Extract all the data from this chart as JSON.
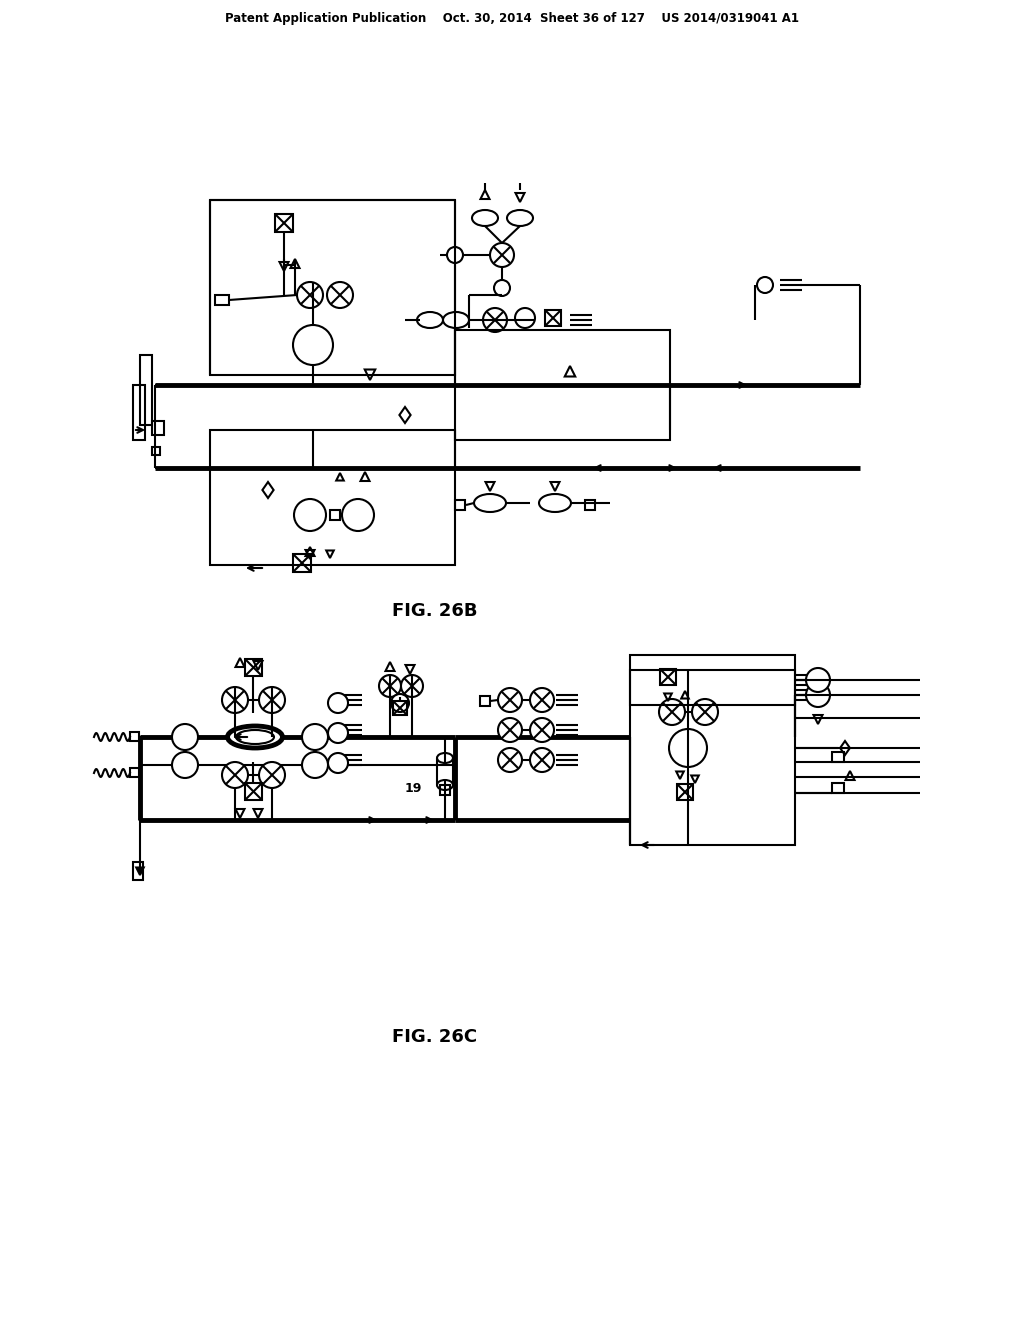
{
  "header": "Patent Application Publication    Oct. 30, 2014  Sheet 36 of 127    US 2014/0319041 A1",
  "fig26b_label": "FIG. 26B",
  "fig26c_label": "FIG. 26C",
  "label_19": "19",
  "bg_color": "#ffffff",
  "lc": "#000000",
  "lw": 1.5,
  "blw": 3.5
}
